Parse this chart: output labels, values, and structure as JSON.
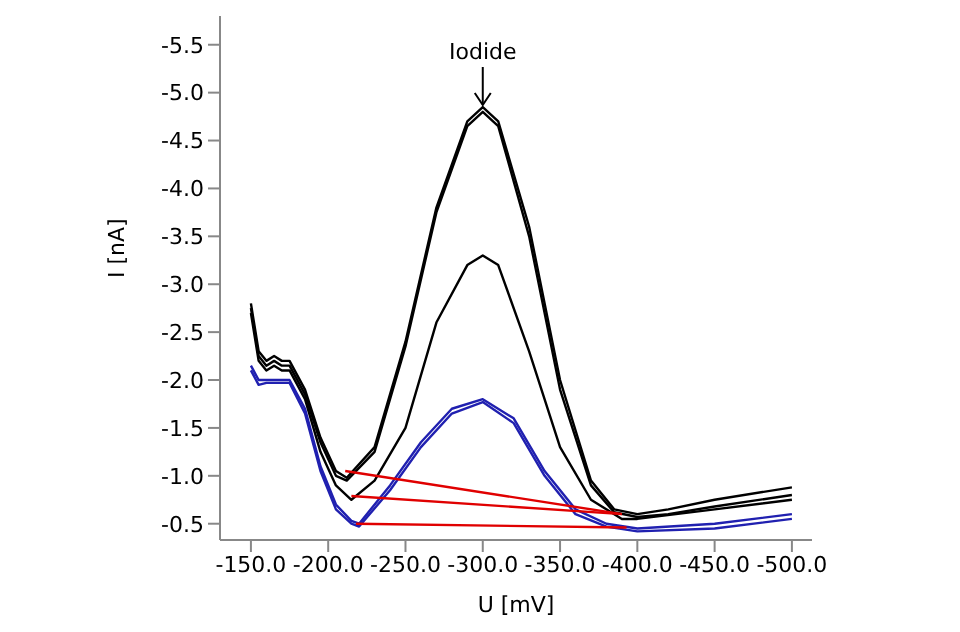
{
  "chart_data": {
    "type": "line",
    "xlabel": "U [mV]",
    "ylabel": "I [nA]",
    "xlim": [
      -130,
      -513
    ],
    "ylim": [
      -0.33,
      -5.8
    ],
    "xticks": [
      {
        "value": -150,
        "label": "-150.0"
      },
      {
        "value": -200,
        "label": "-200.0"
      },
      {
        "value": -250,
        "label": "-250.0"
      },
      {
        "value": -300,
        "label": "-300.0"
      },
      {
        "value": -350,
        "label": "-350.0"
      },
      {
        "value": -400,
        "label": "-400.0"
      },
      {
        "value": -450,
        "label": "-450.0"
      },
      {
        "value": -500,
        "label": "-500.0"
      }
    ],
    "yticks": [
      {
        "value": -0.5,
        "label": "-0.5"
      },
      {
        "value": -1,
        "label": "-1.0"
      },
      {
        "value": -1.5,
        "label": "-1.5"
      },
      {
        "value": -2,
        "label": "-2.0"
      },
      {
        "value": -2.5,
        "label": "-2.5"
      },
      {
        "value": -3,
        "label": "-3.0"
      },
      {
        "value": -3.5,
        "label": "-3.5"
      },
      {
        "value": -4,
        "label": "-4.0"
      },
      {
        "value": -4.5,
        "label": "-4.5"
      },
      {
        "value": -5,
        "label": "-5.0"
      },
      {
        "value": -5.5,
        "label": "-5.5"
      }
    ],
    "grid": false,
    "legend": false,
    "marker": "none",
    "line_style": "solid",
    "annotations": [
      {
        "text": "Iodide",
        "x": -300,
        "y": -4.85
      }
    ],
    "series": [
      {
        "color": "#000000",
        "x": [
          -150,
          -155,
          -160,
          -165,
          -170,
          -175,
          -185,
          -195,
          -205,
          -212,
          -230,
          -250,
          -270,
          -290,
          -300,
          -310,
          -330,
          -350,
          -370,
          -385,
          -400,
          -420,
          -450,
          -500
        ],
        "values": [
          -2.8,
          -2.3,
          -2.2,
          -2.25,
          -2.2,
          -2.2,
          -1.9,
          -1.4,
          -1.05,
          -0.98,
          -1.3,
          -2.4,
          -3.8,
          -4.7,
          -4.85,
          -4.7,
          -3.6,
          -2.0,
          -0.95,
          -0.65,
          -0.6,
          -0.65,
          -0.75,
          -0.88
        ]
      },
      {
        "color": "#000000",
        "x": [
          -150,
          -155,
          -160,
          -165,
          -170,
          -175,
          -185,
          -195,
          -205,
          -212,
          -230,
          -250,
          -270,
          -290,
          -300,
          -310,
          -330,
          -350,
          -370,
          -385,
          -400,
          -420,
          -450,
          -500
        ],
        "values": [
          -2.75,
          -2.25,
          -2.15,
          -2.2,
          -2.15,
          -2.15,
          -1.85,
          -1.35,
          -1.0,
          -0.95,
          -1.25,
          -2.35,
          -3.75,
          -4.65,
          -4.8,
          -4.65,
          -3.5,
          -1.9,
          -0.9,
          -0.62,
          -0.57,
          -0.6,
          -0.68,
          -0.8
        ]
      },
      {
        "color": "#000000",
        "x": [
          -150,
          -155,
          -160,
          -165,
          -170,
          -175,
          -185,
          -195,
          -205,
          -215,
          -230,
          -250,
          -270,
          -290,
          -300,
          -310,
          -330,
          -350,
          -370,
          -390,
          -400,
          -450,
          -500
        ],
        "values": [
          -2.7,
          -2.2,
          -2.1,
          -2.15,
          -2.1,
          -2.1,
          -1.8,
          -1.25,
          -0.9,
          -0.75,
          -0.95,
          -1.5,
          -2.6,
          -3.2,
          -3.3,
          -3.2,
          -2.3,
          -1.3,
          -0.75,
          -0.55,
          -0.55,
          -0.65,
          -0.75
        ]
      },
      {
        "color": "#2020b0",
        "x": [
          -150,
          -155,
          -160,
          -170,
          -175,
          -185,
          -195,
          -205,
          -215,
          -220,
          -240,
          -260,
          -280,
          -300,
          -320,
          -340,
          -360,
          -380,
          -400,
          -450,
          -500
        ],
        "values": [
          -2.15,
          -2.0,
          -2.0,
          -2.0,
          -2.0,
          -1.7,
          -1.1,
          -0.7,
          -0.53,
          -0.5,
          -0.9,
          -1.35,
          -1.7,
          -1.8,
          -1.6,
          -1.05,
          -0.65,
          -0.5,
          -0.45,
          -0.5,
          -0.6
        ]
      },
      {
        "color": "#2020b0",
        "x": [
          -150,
          -155,
          -160,
          -170,
          -175,
          -185,
          -195,
          -205,
          -215,
          -220,
          -240,
          -260,
          -280,
          -300,
          -320,
          -340,
          -360,
          -380,
          -400,
          -450,
          -500
        ],
        "values": [
          -2.1,
          -1.95,
          -1.97,
          -1.97,
          -1.97,
          -1.65,
          -1.05,
          -0.65,
          -0.5,
          -0.47,
          -0.85,
          -1.3,
          -1.65,
          -1.77,
          -1.55,
          -1.0,
          -0.6,
          -0.47,
          -0.42,
          -0.45,
          -0.55
        ]
      },
      {
        "color": "#e00000",
        "x": [
          -211,
          -390
        ],
        "values": [
          -1.05,
          -0.6
        ]
      },
      {
        "color": "#e00000",
        "x": [
          -215,
          -390
        ],
        "values": [
          -0.79,
          -0.6
        ]
      },
      {
        "color": "#e00000",
        "x": [
          -218,
          -393
        ],
        "values": [
          -0.5,
          -0.46
        ]
      }
    ]
  }
}
